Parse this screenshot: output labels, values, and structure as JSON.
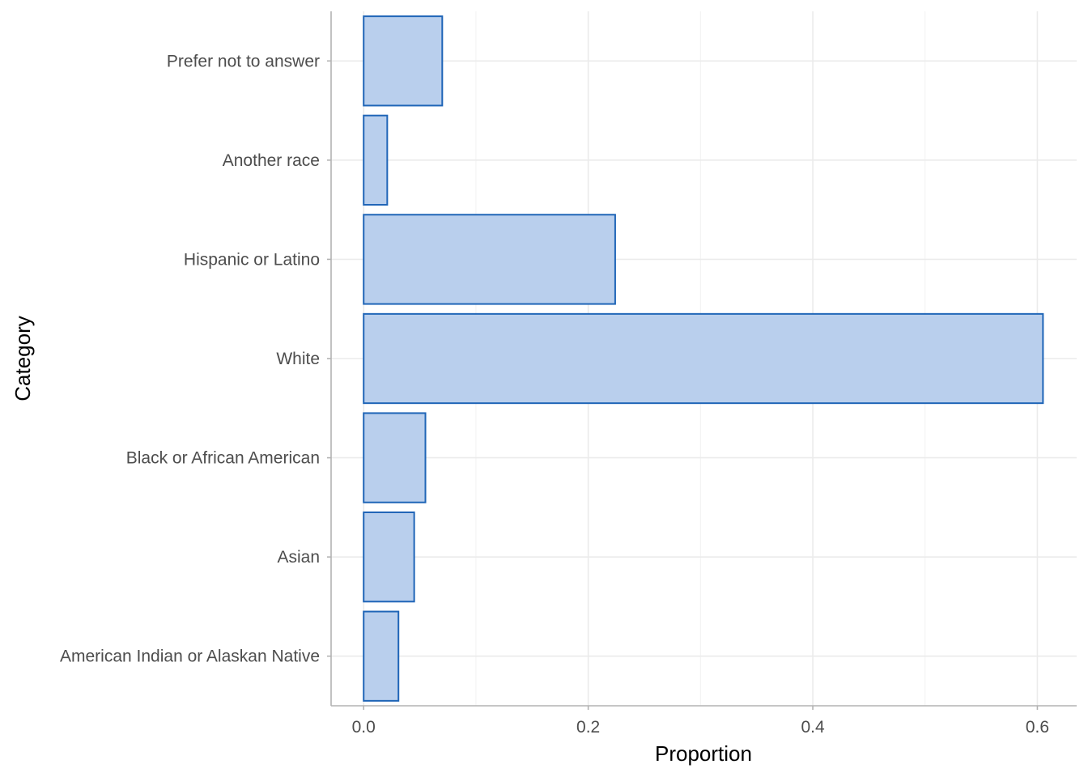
{
  "chart_data": {
    "type": "bar",
    "orientation": "horizontal",
    "categories": [
      "American Indian or Alaskan Native",
      "Asian",
      "Black or African American",
      "White",
      "Hispanic or Latino",
      "Another race",
      "Prefer not to answer"
    ],
    "values": [
      0.031,
      0.045,
      0.055,
      0.605,
      0.224,
      0.021,
      0.07
    ],
    "xlabel": "Proportion",
    "ylabel": "Category",
    "xlim": [
      -0.029,
      0.635
    ],
    "xticks": [
      0.0,
      0.2,
      0.4,
      0.6
    ],
    "xtick_labels": [
      "0.0",
      "0.2",
      "0.4",
      "0.6"
    ],
    "grid": true,
    "colors": {
      "bar_fill": "#b9cfed",
      "bar_stroke": "#1f65b7"
    }
  }
}
